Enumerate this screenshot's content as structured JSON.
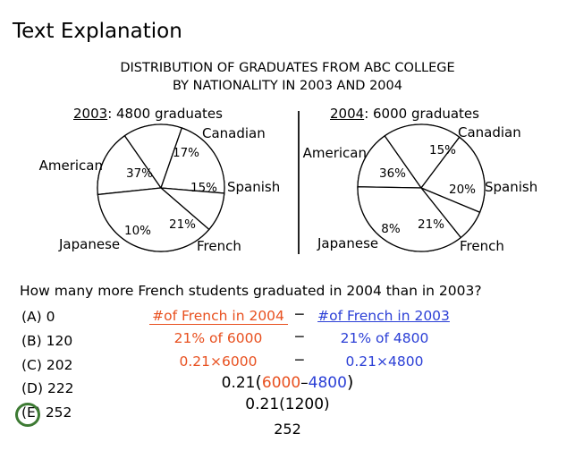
{
  "heading": "Text Explanation",
  "chart_title_line1": "DISTRIBUTION OF GRADUATES FROM ABC COLLEGE",
  "chart_title_line2": "BY NATIONALITY IN 2003 AND 2004",
  "chart_data": [
    {
      "type": "pie",
      "year": "2003",
      "subtitle": ": 4800 graduates",
      "categories": [
        "Canadian",
        "Spanish",
        "French",
        "Japanese",
        "American"
      ],
      "values": [
        17,
        15,
        21,
        10,
        37
      ],
      "value_labels": [
        "17%",
        "15%",
        "21%",
        "10%",
        "37%"
      ]
    },
    {
      "type": "pie",
      "year": "2004",
      "subtitle": ": 6000 graduates",
      "categories": [
        "Canadian",
        "Spanish",
        "French",
        "Japanese",
        "American"
      ],
      "values": [
        15,
        20,
        21,
        8,
        36
      ],
      "value_labels": [
        "15%",
        "20%",
        "21%",
        "8%",
        "36%"
      ]
    }
  ],
  "question": "How many more French students graduated in 2004 than in 2003?",
  "choices": [
    "(A) 0",
    "(B) 120",
    "(C) 202",
    "(D) 222",
    "(E) 252"
  ],
  "correct_choice_index": 4,
  "solution": {
    "row1_left": "#of French in 2004",
    "row1_op": "−",
    "row1_right": "#of French in 2003",
    "row2_left": "21% of 6000",
    "row2_op": "−",
    "row2_right": "21% of 4800",
    "row3_left": "0.21×6000",
    "row3_op": "−",
    "row3_right": "0.21×4800",
    "step1_prefix": "0.21",
    "step1_open": "(",
    "step1_a": "6000",
    "step1_minus": "–",
    "step1_b": "4800",
    "step1_close": ")",
    "step2": "0.21(1200)",
    "answer": "252"
  },
  "colors": {
    "orange": "#e8501f",
    "blue": "#2b3fd6",
    "circle": "#3d7a33"
  }
}
